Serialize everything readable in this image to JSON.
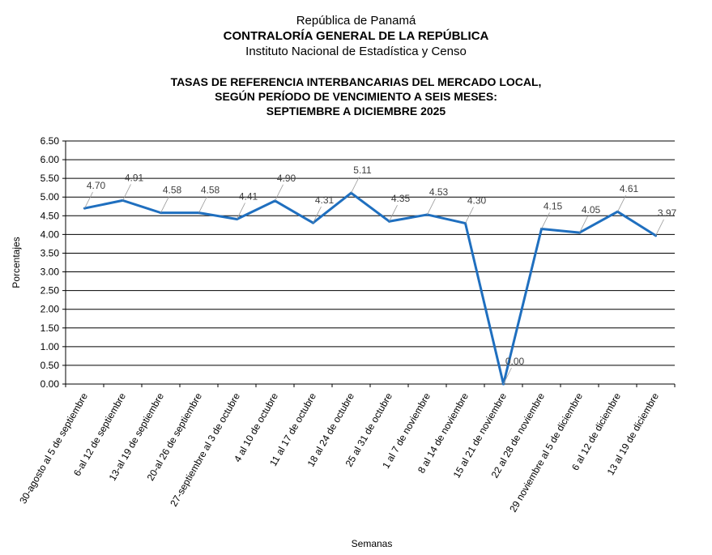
{
  "header": {
    "line1": "República de Panamá",
    "line2": "CONTRALORÍA GENERAL DE LA REPÚBLICA",
    "line3": "Instituto  Nacional de Estadística y Censo"
  },
  "chart_data": {
    "type": "line",
    "title": [
      "TASAS DE REFERENCIA INTERBANCARIAS DEL MERCADO LOCAL,",
      "SEGÚN PERÍODO DE VENCIMIENTO A SEIS MESES:",
      "SEPTIEMBRE A DICIEMBRE 2025"
    ],
    "xlabel": "Semanas",
    "ylabel": "Porcentajes",
    "ylim": [
      0,
      6.5
    ],
    "yticks": [
      "0.00",
      "0.50",
      "1.00",
      "1.50",
      "2.00",
      "2.50",
      "3.00",
      "3.50",
      "4.00",
      "4.50",
      "5.00",
      "5.50",
      "6.00",
      "6.50"
    ],
    "grid": true,
    "line_color": "#1f6fbf",
    "categories": [
      "30-agosto al 5 de septiembre",
      "6-al 12 de septiembre",
      "13-al 19 de septiembre",
      "20-al 26 de septiembre",
      "27-septiembre al 3 de octubre",
      "4 al 10 de octubre",
      "11 al 17 de octubre",
      "18 al 24 de octubre",
      "25 al 31 de octubre",
      "1 al 7 de noviembre",
      "8 al 14 de noviembre",
      "15 al 21 de noviembre",
      "22 al 28 de noviembre",
      "29 noviembre al 5 de diciembre",
      "6 al 12 de diciembre",
      "13 al 19 de diciembre"
    ],
    "values": [
      4.7,
      4.91,
      4.58,
      4.58,
      4.41,
      4.9,
      4.31,
      5.11,
      4.35,
      4.53,
      4.3,
      0.0,
      4.15,
      4.05,
      4.61,
      3.97
    ],
    "value_labels": [
      "4.70",
      "4.91",
      "4.58",
      "4.58",
      "4.41",
      "4.90",
      "4.31",
      "5.11",
      "4.35",
      "4.53",
      "4.30",
      "0.00",
      "4.15",
      "4.05",
      "4.61",
      "3.97"
    ]
  }
}
